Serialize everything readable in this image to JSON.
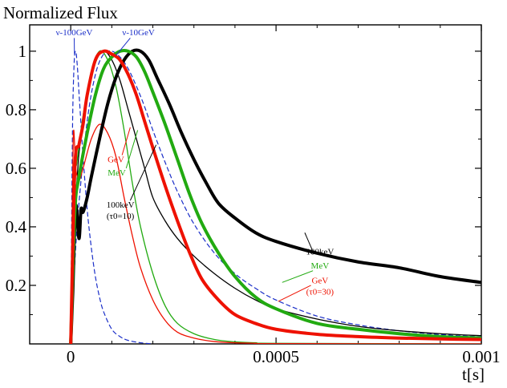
{
  "chart_data": {
    "type": "line",
    "title": "Normalized Flux",
    "xlabel": "t[s]",
    "ylabel": "Normalized Flux",
    "xlim": [
      -0.0001,
      0.001
    ],
    "ylim": [
      0.0,
      1.09
    ],
    "grid": false,
    "x_ticks": [
      {
        "value": 0,
        "label": "0"
      },
      {
        "value": 0.0005,
        "label": "0.0005"
      },
      {
        "value": 0.001,
        "label": "0.001"
      }
    ],
    "y_ticks": [
      {
        "value": 0.2,
        "label": "0.2"
      },
      {
        "value": 0.4,
        "label": "0.4"
      },
      {
        "value": 0.6,
        "label": "0.6"
      },
      {
        "value": 0.8,
        "label": "0.8"
      },
      {
        "value": 1.0,
        "label": "1"
      }
    ],
    "colors": {
      "black": "#000000",
      "green": "#22aa11",
      "red": "#ee1100",
      "blue": "#1a2ec8"
    },
    "series": [
      {
        "name": "100keV (tau0=30)",
        "color": "black",
        "width": 4,
        "dash": false,
        "x": [
          0,
          5e-06,
          1.2e-05,
          2e-05,
          2.5e-05,
          3e-05,
          4e-05,
          5e-05,
          7e-05,
          9e-05,
          0.00011,
          0.00013,
          0.00015,
          0.00017,
          0.00019,
          0.00021,
          0.00024,
          0.00027,
          0.0003,
          0.00033,
          0.00036,
          0.0004,
          0.00045,
          0.0005,
          0.0006,
          0.0007,
          0.0008,
          0.0009,
          0.001
        ],
        "y": [
          0,
          0.18,
          0.47,
          0.36,
          0.46,
          0.45,
          0.5,
          0.57,
          0.7,
          0.82,
          0.91,
          0.97,
          1.0,
          1.0,
          0.97,
          0.91,
          0.82,
          0.72,
          0.63,
          0.55,
          0.48,
          0.43,
          0.38,
          0.35,
          0.31,
          0.28,
          0.26,
          0.23,
          0.21
        ]
      },
      {
        "name": "MeV (tau0=30)",
        "color": "green",
        "width": 4,
        "dash": false,
        "x": [
          0,
          1e-05,
          2e-05,
          4e-05,
          6e-05,
          8e-05,
          0.0001,
          0.00012,
          0.00014,
          0.00016,
          0.00018,
          0.0002,
          0.00023,
          0.00026,
          0.00029,
          0.00032,
          0.00036,
          0.0004,
          0.00045,
          0.0005,
          0.0006,
          0.0007,
          0.0008,
          0.0009,
          0.001
        ],
        "y": [
          0,
          0.45,
          0.57,
          0.72,
          0.85,
          0.94,
          0.98,
          1.0,
          1.0,
          0.98,
          0.93,
          0.86,
          0.75,
          0.63,
          0.51,
          0.41,
          0.31,
          0.23,
          0.16,
          0.12,
          0.07,
          0.05,
          0.035,
          0.025,
          0.02
        ]
      },
      {
        "name": "GeV (tau0=30)",
        "color": "red",
        "width": 4,
        "dash": false,
        "x": [
          0,
          1e-05,
          2e-05,
          3e-05,
          4e-05,
          6e-05,
          8e-05,
          0.0001,
          0.00012,
          0.00014,
          0.00016,
          0.00018,
          0.0002,
          0.00023,
          0.00026,
          0.00029,
          0.00032,
          0.00036,
          0.0004,
          0.00045,
          0.0005,
          0.0006,
          0.0007,
          0.0008,
          0.0009,
          0.001
        ],
        "y": [
          0,
          0.6,
          0.68,
          0.75,
          0.85,
          0.97,
          1.0,
          0.99,
          0.97,
          0.92,
          0.85,
          0.76,
          0.67,
          0.54,
          0.42,
          0.31,
          0.22,
          0.15,
          0.1,
          0.07,
          0.05,
          0.033,
          0.025,
          0.02,
          0.017,
          0.015
        ]
      },
      {
        "name": "100keV (tau0=10)",
        "color": "black",
        "width": 1.3,
        "dash": false,
        "x": [
          0,
          1e-05,
          2e-05,
          4e-05,
          6e-05,
          8e-05,
          0.0001,
          0.00012,
          0.00014,
          0.00016,
          0.00018,
          0.0002,
          0.00023,
          0.00026,
          0.0003,
          0.00035,
          0.0004,
          0.00045,
          0.0005,
          0.0006,
          0.0007,
          0.0008,
          0.0009,
          0.001
        ],
        "y": [
          0,
          0.4,
          0.65,
          0.85,
          0.96,
          1.0,
          0.97,
          0.9,
          0.8,
          0.7,
          0.6,
          0.5,
          0.42,
          0.36,
          0.3,
          0.24,
          0.19,
          0.15,
          0.12,
          0.085,
          0.06,
          0.045,
          0.035,
          0.028
        ]
      },
      {
        "name": "MeV (tau0=10)",
        "color": "green",
        "width": 1.3,
        "dash": false,
        "x": [
          0,
          8e-06,
          1.5e-05,
          3e-05,
          5e-05,
          7e-05,
          9e-05,
          0.00011,
          0.00013,
          0.00015,
          0.00017,
          0.0002,
          0.00023,
          0.00026,
          0.0003,
          0.00035,
          0.0004,
          0.00045,
          0.0005,
          0.001
        ],
        "y": [
          0,
          0.55,
          0.62,
          0.78,
          0.93,
          1.0,
          0.97,
          0.88,
          0.73,
          0.55,
          0.4,
          0.24,
          0.13,
          0.07,
          0.035,
          0.015,
          0.007,
          0.004,
          0.002,
          0.0
        ]
      },
      {
        "name": "GeV (tau0=10)",
        "color": "red",
        "width": 1.3,
        "dash": false,
        "x": [
          0,
          6e-06,
          1.2e-05,
          2e-05,
          3e-05,
          5e-05,
          7e-05,
          9e-05,
          0.00011,
          0.00013,
          0.00015,
          0.00017,
          0.0002,
          0.00023,
          0.00026,
          0.0003,
          0.00035,
          0.0004,
          0.00045,
          0.0005,
          0.001
        ],
        "y": [
          0,
          0.7,
          0.6,
          0.56,
          0.6,
          0.7,
          0.75,
          0.72,
          0.64,
          0.5,
          0.37,
          0.26,
          0.15,
          0.08,
          0.04,
          0.02,
          0.008,
          0.004,
          0.002,
          0.001,
          0.0
        ]
      },
      {
        "name": "nu-100GeV",
        "color": "blue",
        "width": 1.2,
        "dash": true,
        "x": [
          0,
          4e-06,
          8e-06,
          1.2e-05,
          1.6e-05,
          2e-05,
          2.5e-05,
          3e-05,
          4e-05,
          5e-05,
          6e-05,
          7e-05,
          8e-05,
          0.0001,
          0.00012,
          0.00014,
          0.00017,
          0.0002
        ],
        "y": [
          0,
          0.7,
          0.95,
          1.0,
          0.95,
          0.86,
          0.75,
          0.64,
          0.46,
          0.33,
          0.23,
          0.16,
          0.11,
          0.05,
          0.025,
          0.012,
          0.004,
          0.0
        ]
      },
      {
        "name": "nu-10GeV",
        "color": "blue",
        "width": 1.2,
        "dash": true,
        "x": [
          0,
          1e-05,
          2e-05,
          4e-05,
          6e-05,
          8e-05,
          0.0001,
          0.00012,
          0.00014,
          0.00016,
          0.00018,
          0.0002,
          0.00023,
          0.00026,
          0.0003,
          0.00035,
          0.0004,
          0.00045,
          0.0005,
          0.0006,
          0.0007,
          0.0008,
          0.0009,
          0.001
        ],
        "y": [
          0,
          0.28,
          0.48,
          0.76,
          0.92,
          0.99,
          1.0,
          0.98,
          0.94,
          0.88,
          0.81,
          0.73,
          0.62,
          0.52,
          0.41,
          0.31,
          0.24,
          0.19,
          0.15,
          0.095,
          0.065,
          0.045,
          0.032,
          0.024
        ]
      }
    ],
    "annotations": [
      {
        "id": "nu100",
        "lines": [
          "ν-100GeV"
        ],
        "color": "blue",
        "x": 8.5e-06,
        "y": 1.055,
        "anchor": "middle",
        "leader": [
          8.5e-06,
          1.045,
          9e-06,
          0.99
        ]
      },
      {
        "id": "nu10",
        "lines": [
          "ν-10GeV"
        ],
        "color": "blue",
        "x": 0.000165,
        "y": 1.055,
        "anchor": "middle",
        "leader": [
          0.000145,
          1.045,
          0.00011,
          0.985
        ]
      },
      {
        "id": "gev10",
        "lines": [
          "GeV"
        ],
        "color": "red",
        "x": 0.00011,
        "y": 0.62,
        "anchor": "middle",
        "leader": [
          0.000125,
          0.645,
          0.000145,
          0.74
        ]
      },
      {
        "id": "mev10",
        "lines": [
          "MeV"
        ],
        "color": "green",
        "x": 0.000112,
        "y": 0.575,
        "anchor": "middle",
        "leader": [
          0.000135,
          0.6,
          0.000163,
          0.73
        ]
      },
      {
        "id": "kev10",
        "lines": [
          "100keV",
          "(τ0=10)"
        ],
        "color": "black",
        "x": 0.000121,
        "y": 0.465,
        "anchor": "middle",
        "leader": [
          0.000145,
          0.49,
          0.000208,
          0.68
        ]
      },
      {
        "id": "kev30",
        "lines": [
          "100keV"
        ],
        "color": "black",
        "x": 0.000607,
        "y": 0.305,
        "anchor": "middle",
        "leader": [
          0.00059,
          0.315,
          0.00057,
          0.38
        ]
      },
      {
        "id": "mev30",
        "lines": [
          "MeV"
        ],
        "color": "green",
        "x": 0.000607,
        "y": 0.258,
        "anchor": "middle",
        "leader": [
          0.00059,
          0.25,
          0.000515,
          0.21
        ]
      },
      {
        "id": "gev30",
        "lines": [
          "GeV",
          "(τ0=30)"
        ],
        "color": "red",
        "x": 0.000607,
        "y": 0.207,
        "anchor": "middle",
        "leader": [
          0.000585,
          0.2,
          0.000505,
          0.145
        ]
      }
    ]
  }
}
